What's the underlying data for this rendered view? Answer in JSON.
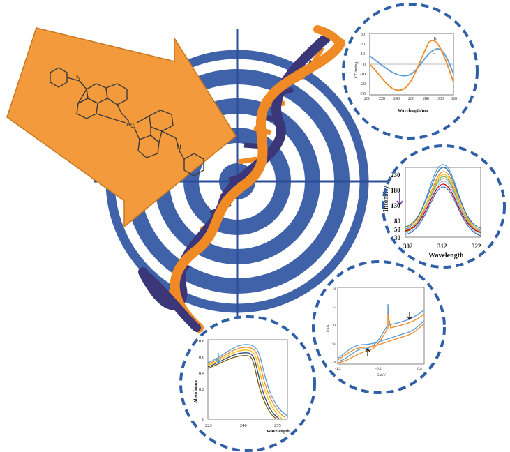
{
  "colors": {
    "target_blue": "#3f62a8",
    "crosshair": "#2d4d9a",
    "arrow_orange": "#f39a3c",
    "dna_orange": "#f08a24",
    "dna_navy": "#3b3678",
    "inset_border": "#2f5fa8"
  },
  "complex": {
    "metal_label": "Ag",
    "imine_label": "N"
  },
  "insets": {
    "cd": {
      "ylabel": "CD/mdeg",
      "xlabel": "Wavelength/nm",
      "xticks": [
        "200",
        "220",
        "240",
        "260",
        "280",
        "300",
        "320"
      ],
      "yticks": [
        "30",
        "20",
        "10",
        "0",
        "-10",
        "-20",
        "-30"
      ],
      "curve_labels": [
        "b",
        "a"
      ]
    },
    "fluorescence": {
      "ylabel": "Intensity",
      "xlabel": "Wavelength",
      "xticks": [
        "302",
        "312",
        "322"
      ],
      "yticks": [
        "230",
        "180",
        "130",
        "80",
        "50",
        "30"
      ]
    },
    "cv": {
      "ylabel": "I/μA",
      "xlabel": "E/mV",
      "xticks": [
        "-1.2",
        "-0.2",
        "0.8"
      ],
      "yticks": [
        "10",
        "5",
        "0",
        "-5",
        "-10"
      ]
    },
    "absorbance": {
      "ylabel": "Absorbance",
      "xlabel": "Wavelength",
      "xticks": [
        "223",
        "240",
        "255"
      ],
      "yticks": [
        "0.8",
        "0.6",
        "0.4",
        "0.2",
        "0"
      ]
    }
  }
}
